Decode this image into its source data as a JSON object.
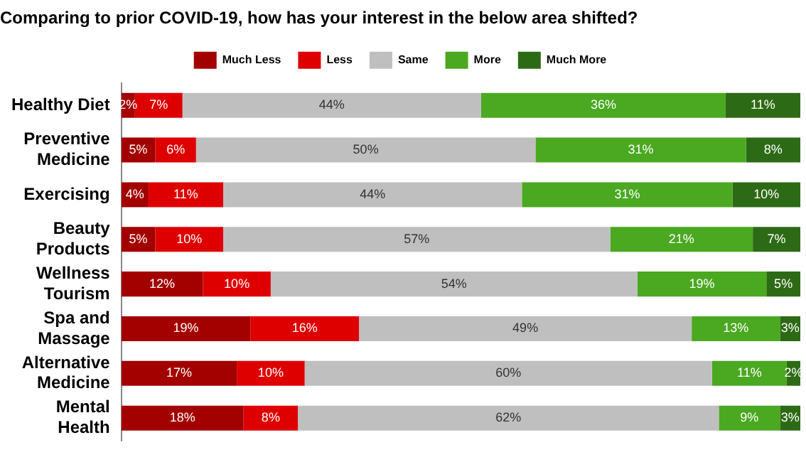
{
  "chart_data": {
    "type": "bar",
    "orientation": "horizontal",
    "stacked": true,
    "legend": "top",
    "title": "Comparing to prior COVID-19, how has your interest in the below area shifted?",
    "categories": [
      "Healthy Diet",
      "Preventive Medicine",
      "Exercising",
      "Beauty Products",
      "Wellness Tourism",
      "Spa and Massage",
      "Alternative Medicine",
      "Mental Health"
    ],
    "series": [
      {
        "name": "Much Less",
        "color": "#a30000",
        "values": [
          2,
          5,
          4,
          5,
          12,
          19,
          17,
          18
        ],
        "value_labels": [
          "2%",
          "5%",
          "4%",
          "5%",
          "12%",
          "19%",
          "17%",
          "18%"
        ]
      },
      {
        "name": "Less",
        "color": "#de0000",
        "values": [
          7,
          6,
          11,
          10,
          10,
          16,
          10,
          8
        ],
        "value_labels": [
          "7%",
          "6%",
          "11%",
          "10%",
          "10%",
          "16%",
          "10%",
          "8%"
        ]
      },
      {
        "name": "Same",
        "color": "#bfbfbf",
        "values": [
          44,
          50,
          44,
          57,
          54,
          49,
          60,
          62
        ],
        "value_labels": [
          "44%",
          "50%",
          "44%",
          "57%",
          "54%",
          "49%",
          "60%",
          "62%"
        ]
      },
      {
        "name": "More",
        "color": "#4aa821",
        "values": [
          36,
          31,
          31,
          21,
          19,
          13,
          11,
          9
        ],
        "value_labels": [
          "36%",
          "31%",
          "31%",
          "21%",
          "19%",
          "13%",
          "11%",
          "9%"
        ]
      },
      {
        "name": "Much More",
        "color": "#2d6a16",
        "values": [
          11,
          8,
          10,
          7,
          5,
          3,
          2,
          3
        ],
        "value_labels": [
          "11%",
          "8%",
          "10%",
          "7%",
          "5%",
          "3%",
          "2%",
          "3%"
        ]
      }
    ]
  }
}
